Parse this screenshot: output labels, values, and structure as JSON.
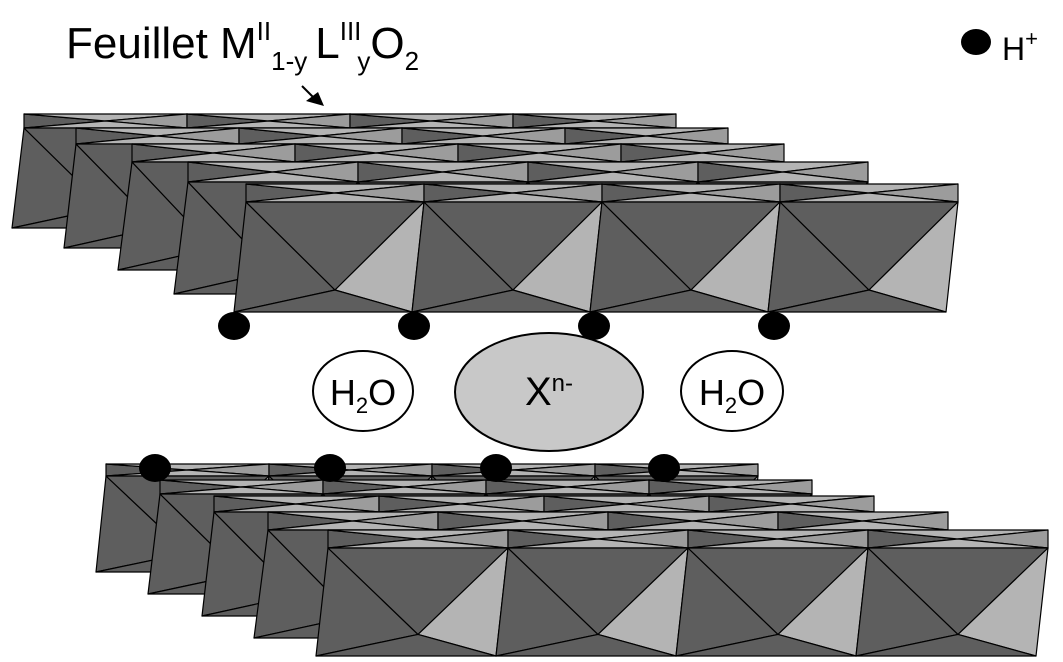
{
  "title": {
    "word": "Feuillet",
    "m": "M",
    "m_sup": "II",
    "m_sub": "1-y",
    "l": "L",
    "l_sup": "III",
    "l_sub": "y",
    "o": "O",
    "o_sub": "2"
  },
  "legend": {
    "label": "H",
    "sup": "+"
  },
  "interlayer": {
    "water_left": {
      "h": "H",
      "sub": "2",
      "o": "O"
    },
    "water_right": {
      "h": "H",
      "sub": "2",
      "o": "O"
    },
    "anion": {
      "x": "X",
      "sup": "n-"
    }
  },
  "colors": {
    "dark_face": "#5e5e5e",
    "light_face": "#b4b4b4",
    "top_face": "#9c9c9c",
    "side_face": "#8c8c8c",
    "anion_fill": "#c8c8c8",
    "outline": "#000000"
  }
}
